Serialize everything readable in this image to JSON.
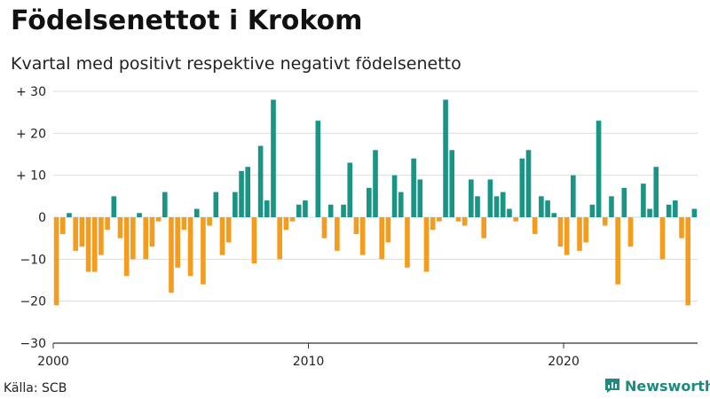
{
  "header": {
    "title": "Födelsenettot i Krokom",
    "subtitle": "Kvartal med positivt respektive negativt födelsenetto"
  },
  "footer": {
    "source": "Källa: SCB",
    "brand": "Newsworthy",
    "brand_icon": "chart-logo-icon"
  },
  "chart_data": {
    "type": "bar",
    "start_year": 2000,
    "periods_per_year": 4,
    "values": [
      -21,
      -4,
      1,
      -8,
      -7,
      -13,
      -13,
      -9,
      -3,
      5,
      -5,
      -14,
      -10,
      1,
      -10,
      -7,
      -1,
      6,
      -18,
      -12,
      -3,
      -14,
      2,
      -16,
      -2,
      6,
      -9,
      -6,
      6,
      11,
      12,
      -11,
      17,
      4,
      28,
      -10,
      -3,
      -1,
      3,
      4,
      0,
      23,
      -5,
      3,
      -8,
      3,
      13,
      -4,
      -9,
      7,
      16,
      -10,
      -6,
      10,
      6,
      -12,
      14,
      9,
      -13,
      -3,
      -1,
      28,
      16,
      -1,
      -2,
      9,
      5,
      -5,
      9,
      5,
      6,
      2,
      -1,
      14,
      16,
      -4,
      5,
      4,
      1,
      -7,
      -9,
      10,
      -8,
      -6,
      3,
      23,
      -2,
      5,
      -16,
      7,
      -7,
      0,
      8,
      2,
      12,
      -10,
      3,
      4,
      -5,
      -21,
      2
    ],
    "ylim": [
      -30,
      30
    ],
    "y_ticks": [
      {
        "value": 30,
        "label": "+ 30"
      },
      {
        "value": 20,
        "label": "+ 20"
      },
      {
        "value": 10,
        "label": "+ 10"
      },
      {
        "value": 0,
        "label": "0"
      },
      {
        "value": -10,
        "label": "−10"
      },
      {
        "value": -20,
        "label": "−20"
      },
      {
        "value": -30,
        "label": "−30"
      }
    ],
    "x_ticks": [
      {
        "year": 2000,
        "label": "2000"
      },
      {
        "year": 2010,
        "label": "2010"
      },
      {
        "year": 2020,
        "label": "2020"
      }
    ],
    "colors": {
      "positive": "#1a9484",
      "negative": "#f39c1d",
      "grid": "#dcdcdc",
      "axis": "#333333"
    },
    "grid": true,
    "legend": "none"
  }
}
